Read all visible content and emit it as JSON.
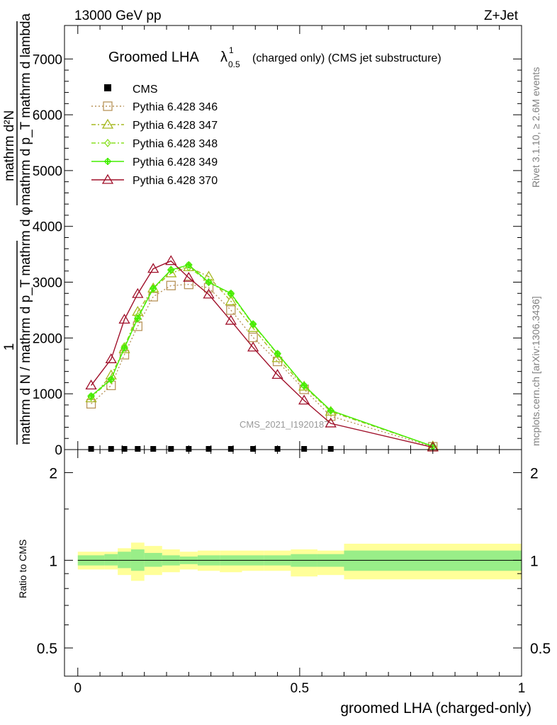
{
  "header": {
    "left": "13000 GeV pp",
    "right": "Z+Jet"
  },
  "side_labels": {
    "rivet": "Rivet 3.1.10, ≥ 2.6M events",
    "mcplots": "mcplots.cern.ch [arXiv:1306.3436]"
  },
  "watermark": "CMS_2021_I1920187",
  "ylabel_main": {
    "numer_line1": "1",
    "denom_line1": "mathrm d N / mathrm d p_T mathrm d φ",
    "numer_line2": "mathrm d²N",
    "denom_line2": "mathrm d p_T mathrm d lambda"
  },
  "chart_data": [
    {
      "type": "line",
      "title": "Groomed LHA λ¹₀.₅ (charged only) (CMS jet substructure)",
      "title_main": "Groomed LHA",
      "title_lambda": "λ",
      "title_sup": "1",
      "title_sub": "0.5",
      "title_rest": "(charged only) (CMS jet substructure)",
      "xlim": [
        -0.03,
        1.0
      ],
      "ylim": [
        0,
        7600
      ],
      "yticks": [
        0,
        1000,
        2000,
        3000,
        4000,
        5000,
        6000,
        7000
      ],
      "ytick_labels": [
        "0",
        "1000",
        "2000",
        "3000",
        "4000",
        "5000",
        "6000",
        "7000"
      ],
      "legend_position": "top-left",
      "cms": {
        "name": "CMS",
        "x": [
          0.03,
          0.075,
          0.105,
          0.135,
          0.17,
          0.21,
          0.25,
          0.295,
          0.345,
          0.395,
          0.45,
          0.51,
          0.57
        ],
        "y": [
          0,
          0,
          0,
          0,
          0,
          0,
          0,
          0,
          0,
          0,
          0,
          0,
          0
        ]
      },
      "series": [
        {
          "name": "Pythia 6.428 346",
          "color": "#b8945a",
          "marker": "square",
          "dash": "2,3",
          "x": [
            0.03,
            0.075,
            0.105,
            0.135,
            0.17,
            0.21,
            0.25,
            0.295,
            0.345,
            0.395,
            0.45,
            0.51,
            0.57,
            0.8
          ],
          "y": [
            820,
            1150,
            1700,
            2210,
            2740,
            2940,
            2960,
            2900,
            2500,
            2010,
            1580,
            1080,
            600,
            50
          ]
        },
        {
          "name": "Pythia 6.428 347",
          "color": "#a6b820",
          "marker": "triangle",
          "dash": "6,3,2,3",
          "x": [
            0.03,
            0.075,
            0.105,
            0.135,
            0.17,
            0.21,
            0.25,
            0.295,
            0.345,
            0.395,
            0.45,
            0.51,
            0.57,
            0.8
          ],
          "y": [
            920,
            1330,
            1800,
            2470,
            2890,
            3160,
            3270,
            3100,
            2660,
            2180,
            1640,
            1130,
            680,
            60
          ]
        },
        {
          "name": "Pythia 6.428 348",
          "color": "#88e020",
          "marker": "diamond",
          "dash": "6,3,2,3",
          "x": [
            0.03,
            0.075,
            0.105,
            0.135,
            0.17,
            0.21,
            0.25,
            0.295,
            0.345,
            0.395,
            0.45,
            0.51,
            0.57,
            0.8
          ],
          "y": [
            940,
            1250,
            1850,
            2390,
            2880,
            3220,
            3270,
            3000,
            2780,
            2240,
            1710,
            1140,
            700,
            60
          ]
        },
        {
          "name": "Pythia 6.428 349",
          "color": "#44ee00",
          "marker": "cross",
          "dash": "",
          "x": [
            0.03,
            0.075,
            0.105,
            0.135,
            0.17,
            0.21,
            0.25,
            0.295,
            0.345,
            0.395,
            0.45,
            0.51,
            0.57,
            0.8
          ],
          "y": [
            960,
            1260,
            1820,
            2350,
            2890,
            3220,
            3310,
            3000,
            2800,
            2250,
            1720,
            1150,
            700,
            60
          ]
        },
        {
          "name": "Pythia 6.428 370",
          "color": "#a0102a",
          "marker": "triangle",
          "dash": "",
          "x": [
            0.03,
            0.075,
            0.105,
            0.135,
            0.17,
            0.21,
            0.25,
            0.295,
            0.345,
            0.395,
            0.45,
            0.51,
            0.57,
            0.8
          ],
          "y": [
            1150,
            1620,
            2330,
            2790,
            3240,
            3380,
            3080,
            2780,
            2310,
            1830,
            1340,
            880,
            470,
            40
          ]
        }
      ]
    },
    {
      "type": "area",
      "ylabel": "Ratio to CMS",
      "xlabel": "groomed LHA (charged-only)",
      "xlim": [
        -0.03,
        1.0
      ],
      "ylim": [
        0.4,
        2.4
      ],
      "log_y": true,
      "yticks": [
        0.5,
        1,
        2
      ],
      "ytick_labels": [
        "0.5",
        "1",
        "2"
      ],
      "xticks": [
        0,
        0.5,
        1
      ],
      "xtick_labels": [
        "0",
        "0.5",
        "1"
      ],
      "reference_line": 1.0,
      "band_colors": {
        "stat": "#99ee88",
        "total": "#ffff99",
        "line": "#000000"
      },
      "bins": [
        {
          "x0": 0.0,
          "x1": 0.06,
          "stat": [
            0.96,
            1.04
          ],
          "total": [
            0.93,
            1.07
          ]
        },
        {
          "x0": 0.06,
          "x1": 0.09,
          "stat": [
            0.96,
            1.05
          ],
          "total": [
            0.93,
            1.07
          ]
        },
        {
          "x0": 0.09,
          "x1": 0.12,
          "stat": [
            0.94,
            1.07
          ],
          "total": [
            0.89,
            1.1
          ]
        },
        {
          "x0": 0.12,
          "x1": 0.15,
          "stat": [
            0.92,
            1.09
          ],
          "total": [
            0.85,
            1.15
          ]
        },
        {
          "x0": 0.15,
          "x1": 0.19,
          "stat": [
            0.95,
            1.06
          ],
          "total": [
            0.89,
            1.12
          ]
        },
        {
          "x0": 0.19,
          "x1": 0.23,
          "stat": [
            0.96,
            1.04
          ],
          "total": [
            0.91,
            1.09
          ]
        },
        {
          "x0": 0.23,
          "x1": 0.27,
          "stat": [
            0.97,
            1.03
          ],
          "total": [
            0.93,
            1.07
          ]
        },
        {
          "x0": 0.27,
          "x1": 0.32,
          "stat": [
            0.96,
            1.04
          ],
          "total": [
            0.92,
            1.08
          ]
        },
        {
          "x0": 0.32,
          "x1": 0.37,
          "stat": [
            0.96,
            1.04
          ],
          "total": [
            0.91,
            1.08
          ]
        },
        {
          "x0": 0.37,
          "x1": 0.42,
          "stat": [
            0.96,
            1.04
          ],
          "total": [
            0.92,
            1.08
          ]
        },
        {
          "x0": 0.42,
          "x1": 0.48,
          "stat": [
            0.96,
            1.04
          ],
          "total": [
            0.92,
            1.08
          ]
        },
        {
          "x0": 0.48,
          "x1": 0.54,
          "stat": [
            0.95,
            1.05
          ],
          "total": [
            0.88,
            1.09
          ]
        },
        {
          "x0": 0.54,
          "x1": 0.6,
          "stat": [
            0.95,
            1.05
          ],
          "total": [
            0.89,
            1.08
          ]
        },
        {
          "x0": 0.6,
          "x1": 1.0,
          "stat": [
            0.92,
            1.08
          ],
          "total": [
            0.86,
            1.14
          ]
        }
      ]
    }
  ]
}
